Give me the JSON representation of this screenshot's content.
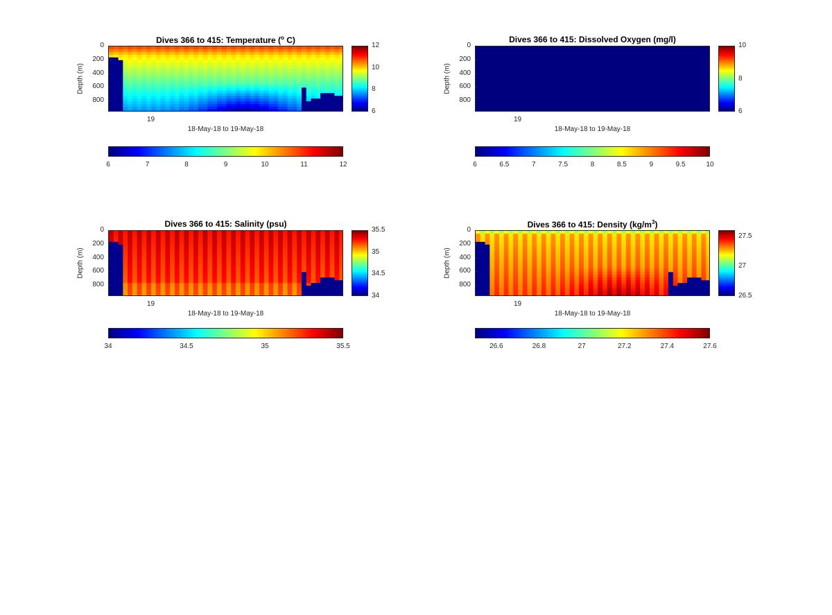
{
  "colors": {
    "jet_stops": [
      "#00007f",
      "#0000ff",
      "#007fff",
      "#00ffff",
      "#7fff7f",
      "#ffff00",
      "#ff7f00",
      "#ff0000",
      "#7f0000"
    ],
    "no_data": "#00008f"
  },
  "chart_data": [
    {
      "type": "heatmap",
      "id": "temperature",
      "title_main": "Dives 366 to 415: Temperature (",
      "title_sup": "o",
      "title_end": " C)",
      "xlabel": "18-May-18 to 19-May-18",
      "ylabel": "Depth (m)",
      "x_tick_labels": [
        "19"
      ],
      "y_ticks": [
        0,
        200,
        400,
        600,
        800
      ],
      "ylim": [
        0,
        960
      ],
      "clim": [
        6,
        12
      ],
      "cbar_v_ticks": [
        "6",
        "8",
        "10",
        "12"
      ],
      "cbar_h_ticks": [
        "6",
        "7",
        "8",
        "9",
        "10",
        "11",
        "12"
      ]
    },
    {
      "type": "heatmap",
      "id": "oxygen",
      "title_main": "Dives 366 to 415: Dissolved Oxygen (mg/l)",
      "title_sup": "",
      "title_end": "",
      "xlabel": "18-May-18 to 19-May-18",
      "ylabel": "Depth (m)",
      "x_tick_labels": [
        "19"
      ],
      "y_ticks": [
        0,
        200,
        400,
        600,
        800
      ],
      "ylim": [
        0,
        960
      ],
      "clim": [
        6,
        10
      ],
      "cbar_v_ticks": [
        "6",
        "8",
        "10"
      ],
      "cbar_h_ticks": [
        "6",
        "6.5",
        "7",
        "7.5",
        "8",
        "8.5",
        "9",
        "9.5",
        "10"
      ]
    },
    {
      "type": "heatmap",
      "id": "salinity",
      "title_main": "Dives 366 to 415: Salinity (psu)",
      "title_sup": "",
      "title_end": "",
      "xlabel": "18-May-18 to 19-May-18",
      "ylabel": "Depth (m)",
      "x_tick_labels": [
        "19"
      ],
      "y_ticks": [
        0,
        200,
        400,
        600,
        800
      ],
      "ylim": [
        0,
        960
      ],
      "clim": [
        34,
        35.5
      ],
      "cbar_v_ticks": [
        "34",
        "34.5",
        "35",
        "35.5"
      ],
      "cbar_h_ticks": [
        "34",
        "34.5",
        "35",
        "35.5"
      ]
    },
    {
      "type": "heatmap",
      "id": "density",
      "title_main": "Dives 366 to 415: Density (kg/m",
      "title_sup": "3",
      "title_end": ")",
      "xlabel": "18-May-18 to 19-May-18",
      "ylabel": "Depth (m)",
      "x_tick_labels": [
        "19"
      ],
      "y_ticks": [
        0,
        200,
        400,
        600,
        800
      ],
      "ylim": [
        0,
        960
      ],
      "clim": [
        26.5,
        27.6
      ],
      "cbar_v_ticks": [
        "26.5",
        "27",
        "27.5"
      ],
      "cbar_h_ticks": [
        "26.6",
        "26.8",
        "27",
        "27.2",
        "27.4",
        "27.6"
      ]
    }
  ]
}
